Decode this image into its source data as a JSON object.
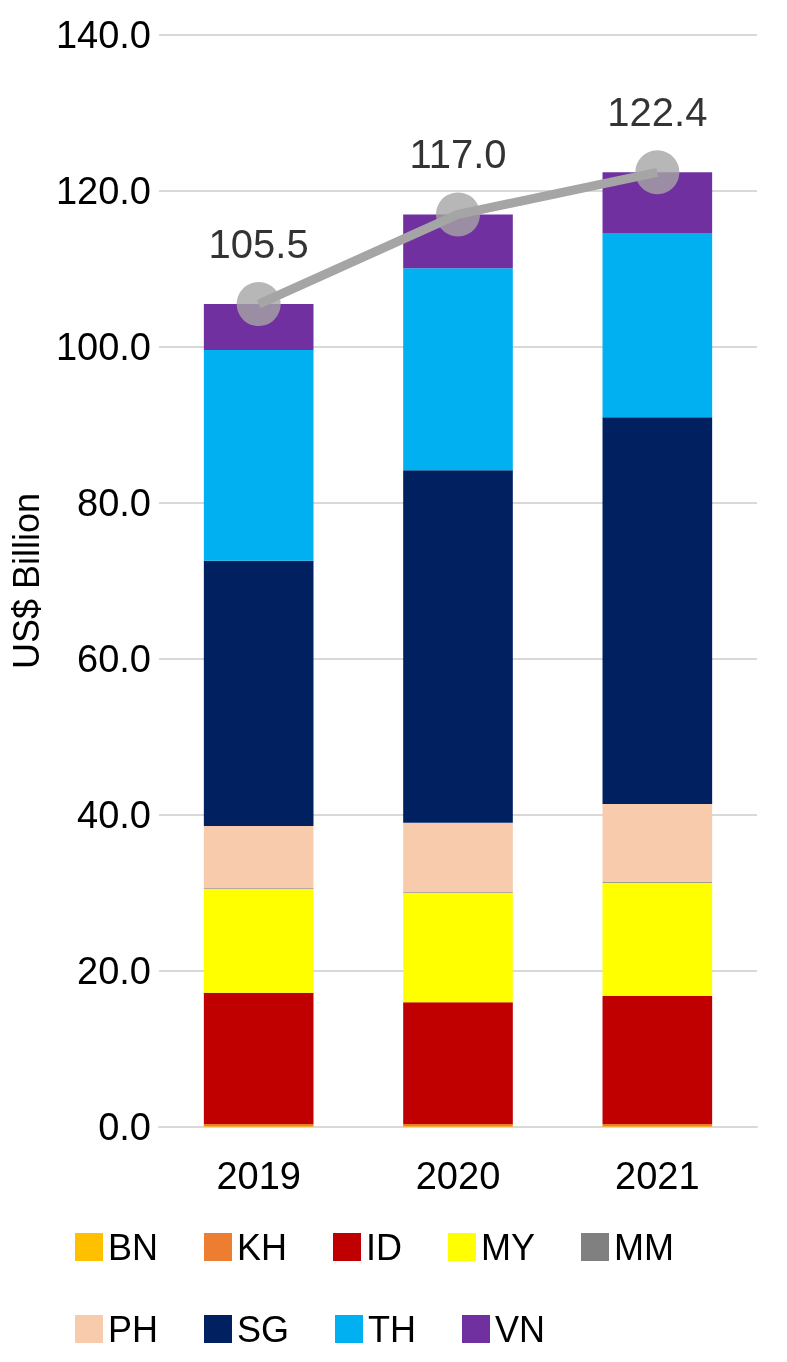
{
  "chart_data": {
    "type": "bar",
    "ylabel": "US$ Billion",
    "categories": [
      "2019",
      "2020",
      "2021"
    ],
    "stacked": true,
    "series": [
      {
        "name": "BN",
        "color": "#ffc000",
        "values": [
          0.1,
          0.1,
          0.1
        ]
      },
      {
        "name": "KH",
        "color": "#ed7d31",
        "values": [
          0.3,
          0.3,
          0.3
        ]
      },
      {
        "name": "ID",
        "color": "#c00000",
        "values": [
          16.8,
          15.6,
          16.4
        ]
      },
      {
        "name": "MY",
        "color": "#ffff00",
        "values": [
          13.3,
          14.0,
          14.5
        ]
      },
      {
        "name": "MM",
        "color": "#808080",
        "values": [
          0.1,
          0.1,
          0.1
        ]
      },
      {
        "name": "PH",
        "color": "#f8cbad",
        "values": [
          8.0,
          8.9,
          10.0
        ]
      },
      {
        "name": "SG",
        "color": "#002060",
        "values": [
          34.0,
          45.2,
          49.6
        ]
      },
      {
        "name": "TH",
        "color": "#00b0f0",
        "values": [
          27.0,
          25.9,
          23.6
        ]
      },
      {
        "name": "VN",
        "color": "#7030a0",
        "values": [
          5.9,
          6.9,
          7.8
        ]
      },
      {
        "type": "line",
        "color": "#a5a5a5",
        "marker": "circle",
        "values": [
          105.5,
          117.0,
          122.4
        ],
        "value_labels": [
          "105.5",
          "117.0",
          "122.4"
        ]
      }
    ],
    "ylim": [
      0,
      140
    ],
    "yticks": [
      {
        "value": 0,
        "label": "0.0"
      },
      {
        "value": 20,
        "label": "20.0"
      },
      {
        "value": 40,
        "label": "40.0"
      },
      {
        "value": 60,
        "label": "60.0"
      },
      {
        "value": 80,
        "label": "80.0"
      },
      {
        "value": 100,
        "label": "100.0"
      },
      {
        "value": 120,
        "label": "120.0"
      },
      {
        "value": 140,
        "label": "140.0"
      }
    ],
    "grid": "y",
    "legend": "bottom"
  }
}
